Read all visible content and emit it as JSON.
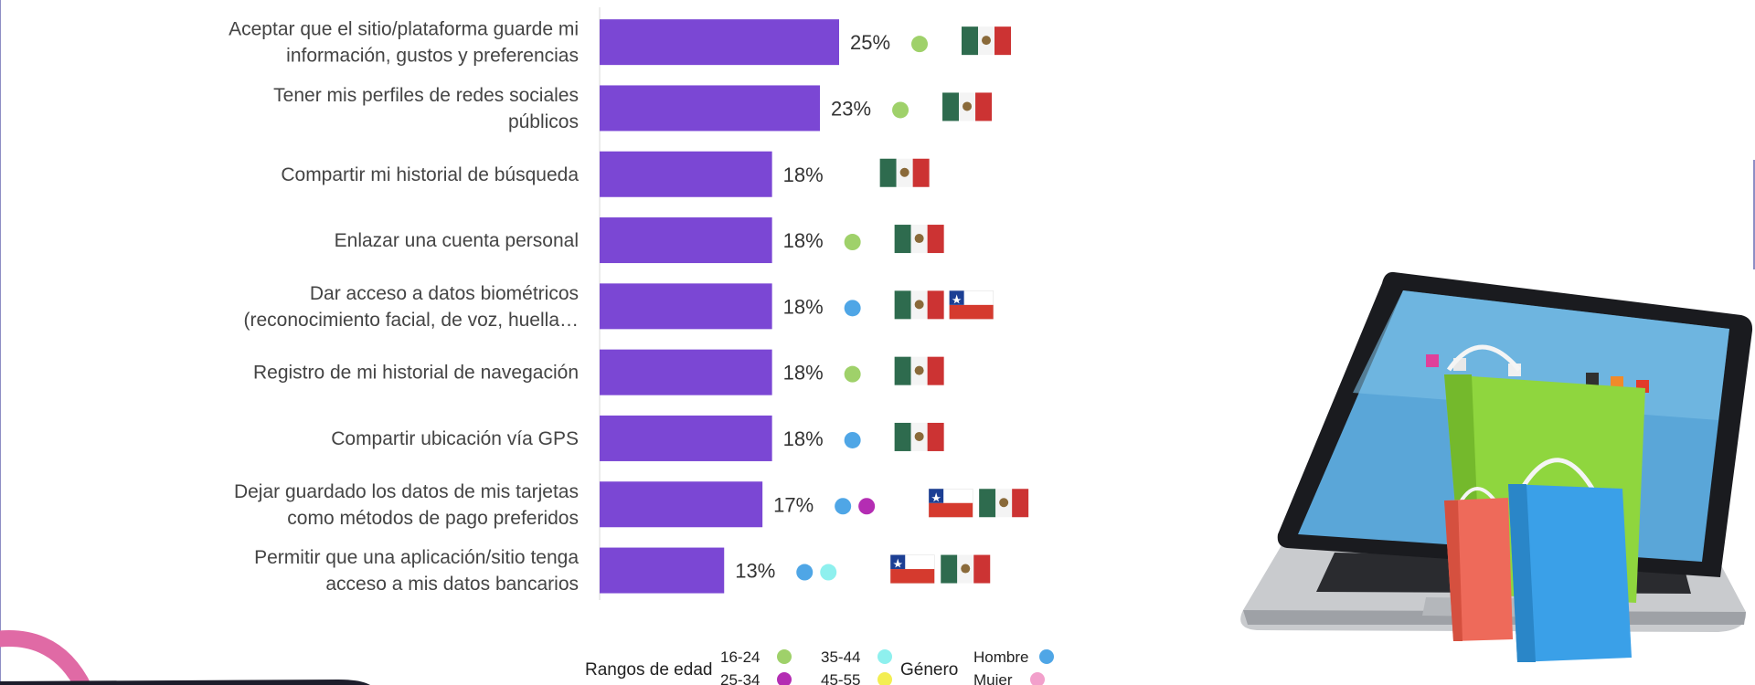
{
  "chart_data": {
    "type": "bar",
    "orientation": "horizontal",
    "categories": [
      [
        "Aceptar que el sitio/plataforma guarde mi",
        "información, gustos y preferencias"
      ],
      [
        "Tener mis perfiles de redes sociales",
        "públicos"
      ],
      [
        "Compartir mi historial de búsqueda"
      ],
      [
        "Enlazar una cuenta personal"
      ],
      [
        "Dar acceso a datos biométricos",
        "(reconocimiento facial, de voz, huella…"
      ],
      [
        "Registro de mi historial de navegación"
      ],
      [
        "Compartir ubicación vía GPS"
      ],
      [
        "Dejar guardado los datos de mis tarjetas",
        "como métodos de pago preferidos"
      ],
      [
        "Permitir que una aplicación/sitio tenga",
        "acceso a mis datos bancarios"
      ]
    ],
    "values": [
      25,
      23,
      18,
      18,
      18,
      18,
      18,
      17,
      13
    ],
    "value_labels": [
      "25%",
      "23%",
      "18%",
      "18%",
      "18%",
      "18%",
      "18%",
      "17%",
      "13%"
    ],
    "xlim": [
      0,
      25
    ],
    "bar_color": "#7b47d4",
    "markers": [
      {
        "dots": [
          "16-24"
        ],
        "flags": [
          "mexico"
        ]
      },
      {
        "dots": [
          "16-24"
        ],
        "flags": [
          "mexico"
        ]
      },
      {
        "dots": [],
        "flags": [
          "mexico"
        ]
      },
      {
        "dots": [
          "16-24"
        ],
        "flags": [
          "mexico"
        ]
      },
      {
        "dots": [
          "Hombre"
        ],
        "flags": [
          "mexico",
          "chile"
        ]
      },
      {
        "dots": [
          "16-24"
        ],
        "flags": [
          "mexico"
        ]
      },
      {
        "dots": [
          "Hombre"
        ],
        "flags": [
          "mexico"
        ]
      },
      {
        "dots": [
          "Hombre",
          "25-34"
        ],
        "flags": [
          "chile",
          "mexico"
        ]
      },
      {
        "dots": [
          "Hombre",
          "35-44"
        ],
        "flags": [
          "chile",
          "mexico"
        ]
      }
    ]
  },
  "legend": {
    "age_title": "Rangos de edad",
    "gender_title": "Género",
    "items": [
      {
        "label": "16-24",
        "color": "#9fd16a"
      },
      {
        "label": "25-34",
        "color": "#b42db3"
      },
      {
        "label": "35-44",
        "color": "#8ef0ee"
      },
      {
        "label": "45-55",
        "color": "#f3ee52"
      },
      {
        "label": "Hombre",
        "color": "#4fa6e6"
      },
      {
        "label": "Mujer",
        "color": "#f2a0cb"
      }
    ]
  },
  "flag_colors": {
    "mexico": [
      "#2e6b4e",
      "#f4f4f4",
      "#cc3333"
    ],
    "chile": [
      "#d53a2e",
      "#ffffff",
      "#1c3f94"
    ]
  },
  "illustration": {
    "icon_name": "laptop-shopping-bags-icon",
    "colors": {
      "green_bag": "#8fd63e",
      "red_bag": "#ee6a5a",
      "blue_bag": "#3aa0e8",
      "screen": "#5aa6d8"
    }
  }
}
